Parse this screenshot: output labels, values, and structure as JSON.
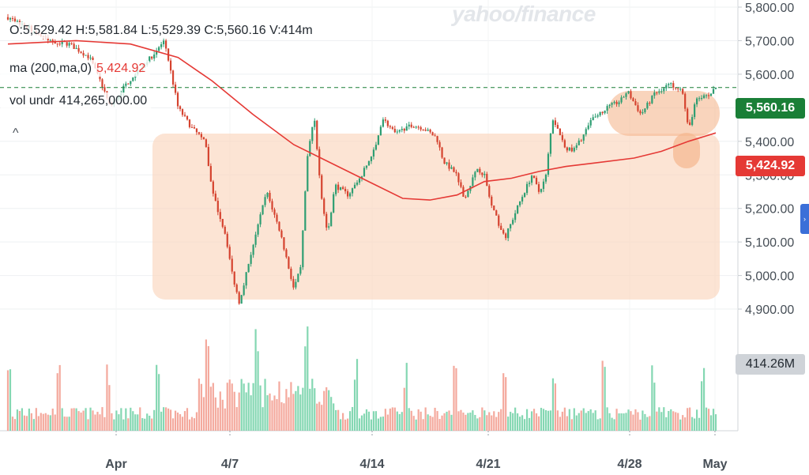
{
  "watermark": "yahoo/finance",
  "legend": {
    "ohlc": "O:5,529.42  H:5,581.84  L:5,529.39  C:5,560.16  V:414m",
    "ma_label": "ma (200,ma,0)",
    "ma_value": "5,424.92",
    "vol_label": "vol undr",
    "vol_value": "414,265,000.00",
    "collapse_glyph": "^"
  },
  "badges": {
    "last_price": "5,560.16",
    "ma_price": "5,424.92",
    "volume": "414.26M"
  },
  "side_tab_glyph": "›",
  "colors": {
    "up": "#2e9e72",
    "down": "#d5432f",
    "ma_line": "#e53935",
    "vol_up": "#6fd0a4",
    "vol_down": "#f29a8c",
    "highlight_fill": "#fbd5bd",
    "last_badge": "#1a7f37"
  },
  "chart_data": {
    "type": "candlestick",
    "y_ticks": [
      "5,800.00",
      "5,700.00",
      "5,600.00",
      "5,500.00",
      "5,400.00",
      "5,300.00",
      "5,200.00",
      "5,100.00",
      "5,000.00",
      "4,900.00"
    ],
    "y_tick_values": [
      5800,
      5700,
      5600,
      5500,
      5400,
      5300,
      5200,
      5100,
      5000,
      4900
    ],
    "x_ticks": [
      "Apr",
      "4/7",
      "4/14",
      "4/21",
      "4/28",
      "May"
    ],
    "ylim": [
      4810,
      5832
    ],
    "grid": true,
    "last_close": 5560.16,
    "price_path": [
      {
        "t": 0,
        "v": 5770
      },
      {
        "t": 3,
        "v": 5740
      },
      {
        "t": 6,
        "v": 5700
      },
      {
        "t": 9,
        "v": 5690
      },
      {
        "t": 12,
        "v": 5650
      },
      {
        "t": 14,
        "v": 5560
      },
      {
        "t": 15,
        "v": 5500
      },
      {
        "t": 17,
        "v": 5560
      },
      {
        "t": 19,
        "v": 5610
      },
      {
        "t": 21,
        "v": 5650
      },
      {
        "t": 23,
        "v": 5700
      },
      {
        "t": 25,
        "v": 5500
      },
      {
        "t": 27,
        "v": 5440
      },
      {
        "t": 29,
        "v": 5400
      },
      {
        "t": 30,
        "v": 5250
      },
      {
        "t": 32,
        "v": 5120
      },
      {
        "t": 33,
        "v": 5000
      },
      {
        "t": 34,
        "v": 4920
      },
      {
        "t": 36,
        "v": 5090
      },
      {
        "t": 38,
        "v": 5250
      },
      {
        "t": 40,
        "v": 5130
      },
      {
        "t": 42,
        "v": 4960
      },
      {
        "t": 43,
        "v": 5020
      },
      {
        "t": 44,
        "v": 5350
      },
      {
        "t": 45,
        "v": 5480
      },
      {
        "t": 46,
        "v": 5240
      },
      {
        "t": 47,
        "v": 5120
      },
      {
        "t": 48,
        "v": 5270
      },
      {
        "t": 50,
        "v": 5240
      },
      {
        "t": 52,
        "v": 5300
      },
      {
        "t": 54,
        "v": 5380
      },
      {
        "t": 55,
        "v": 5470
      },
      {
        "t": 57,
        "v": 5420
      },
      {
        "t": 59,
        "v": 5450
      },
      {
        "t": 61,
        "v": 5440
      },
      {
        "t": 63,
        "v": 5410
      },
      {
        "t": 64,
        "v": 5340
      },
      {
        "t": 66,
        "v": 5300
      },
      {
        "t": 67,
        "v": 5230
      },
      {
        "t": 69,
        "v": 5320
      },
      {
        "t": 70,
        "v": 5300
      },
      {
        "t": 71,
        "v": 5210
      },
      {
        "t": 73,
        "v": 5110
      },
      {
        "t": 74,
        "v": 5160
      },
      {
        "t": 75,
        "v": 5210
      },
      {
        "t": 77,
        "v": 5300
      },
      {
        "t": 78,
        "v": 5250
      },
      {
        "t": 79,
        "v": 5290
      },
      {
        "t": 80,
        "v": 5470
      },
      {
        "t": 82,
        "v": 5380
      },
      {
        "t": 83,
        "v": 5370
      },
      {
        "t": 84,
        "v": 5400
      },
      {
        "t": 86,
        "v": 5470
      },
      {
        "t": 88,
        "v": 5500
      },
      {
        "t": 90,
        "v": 5520
      },
      {
        "t": 91,
        "v": 5550
      },
      {
        "t": 93,
        "v": 5480
      },
      {
        "t": 95,
        "v": 5540
      },
      {
        "t": 97,
        "v": 5570
      },
      {
        "t": 99,
        "v": 5560
      },
      {
        "t": 100,
        "v": 5430
      },
      {
        "t": 101,
        "v": 5520
      },
      {
        "t": 103,
        "v": 5540
      },
      {
        "t": 104,
        "v": 5560
      }
    ],
    "ma_path": [
      {
        "t": 0,
        "v": 5690
      },
      {
        "t": 10,
        "v": 5700
      },
      {
        "t": 18,
        "v": 5690
      },
      {
        "t": 25,
        "v": 5650
      },
      {
        "t": 30,
        "v": 5580
      },
      {
        "t": 36,
        "v": 5480
      },
      {
        "t": 42,
        "v": 5390
      },
      {
        "t": 48,
        "v": 5330
      },
      {
        "t": 54,
        "v": 5270
      },
      {
        "t": 58,
        "v": 5230
      },
      {
        "t": 62,
        "v": 5225
      },
      {
        "t": 66,
        "v": 5240
      },
      {
        "t": 70,
        "v": 5280
      },
      {
        "t": 74,
        "v": 5290
      },
      {
        "t": 78,
        "v": 5310
      },
      {
        "t": 82,
        "v": 5325
      },
      {
        "t": 86,
        "v": 5335
      },
      {
        "t": 92,
        "v": 5350
      },
      {
        "t": 96,
        "v": 5370
      },
      {
        "t": 100,
        "v": 5400
      },
      {
        "t": 104,
        "v": 5425
      }
    ]
  }
}
